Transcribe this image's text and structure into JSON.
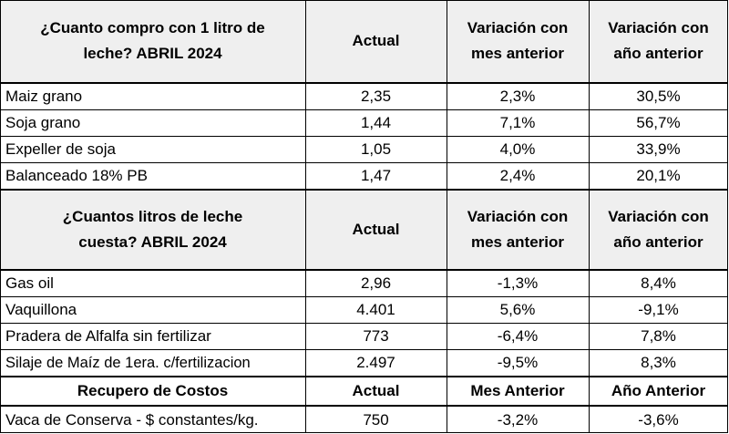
{
  "section1": {
    "headers": [
      "¿Cuanto compro con 1 litro de leche? ABRIL 2024",
      "Actual",
      "Variación con mes anterior",
      "Variación con año anterior"
    ],
    "rows": [
      [
        "Maiz grano",
        "2,35",
        "2,3%",
        "30,5%"
      ],
      [
        "Soja grano",
        "1,44",
        "7,1%",
        "56,7%"
      ],
      [
        "Expeller de soja",
        "1,05",
        "4,0%",
        "33,9%"
      ],
      [
        "Balanceado 18% PB",
        "1,47",
        "2,4%",
        "20,1%"
      ]
    ]
  },
  "section2": {
    "headers": [
      "¿Cuantos litros de leche cuesta? ABRIL 2024",
      "Actual",
      "Variación con mes anterior",
      "Variación con año anterior"
    ],
    "rows": [
      [
        "Gas oil",
        "2,96",
        "-1,3%",
        "8,4%"
      ],
      [
        "Vaquillona",
        "4.401",
        "5,6%",
        "-9,1%"
      ],
      [
        "Pradera de Alfalfa sin fertilizar",
        "773",
        "-6,4%",
        "7,8%"
      ],
      [
        "Silaje de Maíz de 1era. c/fertilizacion",
        "2.497",
        "-9,5%",
        "8,3%"
      ]
    ]
  },
  "section3": {
    "headers": [
      "Recupero de Costos",
      "Actual",
      "Mes Anterior",
      "Año Anterior"
    ],
    "rows": [
      [
        "Vaca de Conserva - $ constantes/kg.",
        "750",
        "-3,2%",
        "-3,6%"
      ]
    ]
  }
}
